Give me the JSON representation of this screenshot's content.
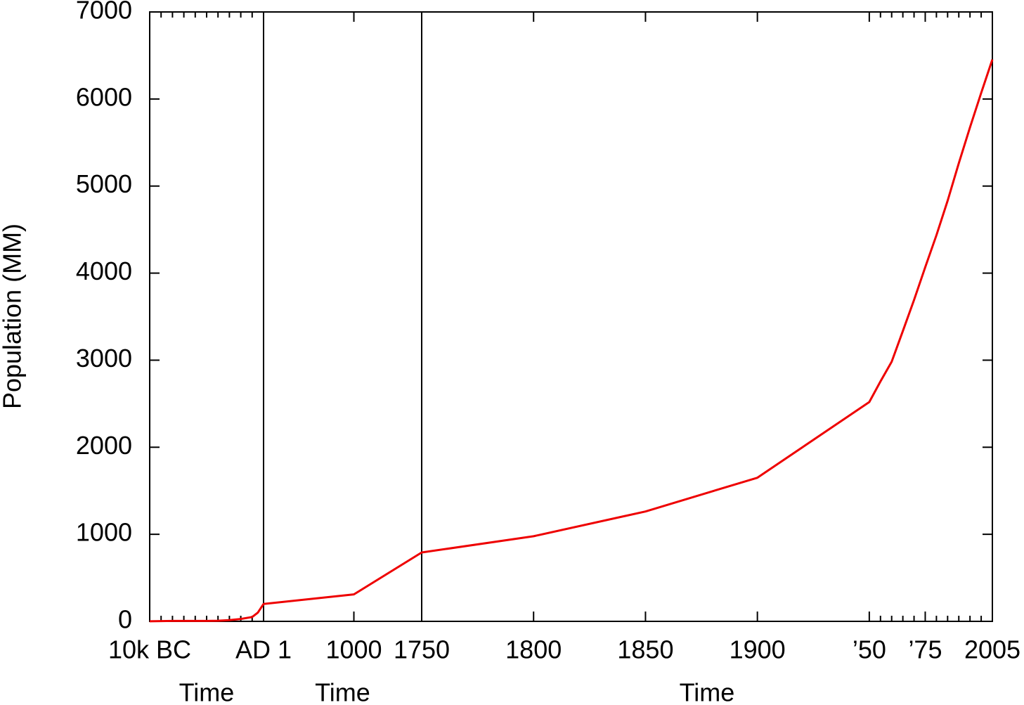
{
  "chart_data": {
    "type": "line",
    "y_label": "Population (MM)",
    "ylim": [
      0,
      7000
    ],
    "yticks": [
      0,
      1000,
      2000,
      3000,
      4000,
      5000,
      6000,
      7000
    ],
    "x_segments": [
      {
        "xlim": [
          -10000,
          1
        ],
        "x_label": "Time",
        "xticks": [
          {
            "value": -10000,
            "label": "10k BC"
          },
          {
            "value": 1,
            "label": "AD 1"
          }
        ],
        "minor_xticks": [
          -9000,
          -8000,
          -7000,
          -6000,
          -5000,
          -4000,
          -3000,
          -2000,
          -1000
        ]
      },
      {
        "xlim": [
          1,
          1750
        ],
        "x_label": "Time",
        "xticks": [
          1000
        ],
        "minor_xticks": []
      },
      {
        "xlim": [
          1750,
          2005
        ],
        "x_label": "Time",
        "xticks": [
          1750,
          1800,
          1850,
          1900,
          {
            "value": 1950,
            "label": "’50"
          },
          {
            "value": 1975,
            "label": "’75"
          },
          2005
        ],
        "minor_xticks": [
          1955,
          1960,
          1965,
          1970,
          1980,
          1985,
          1990,
          1995,
          2000
        ]
      }
    ],
    "series": [
      {
        "color": "#ee0000",
        "x": [
          -10000,
          -8000,
          -6500,
          -5000,
          -4000,
          -3000,
          -2000,
          -1000,
          -500,
          1,
          1000,
          1750,
          1800,
          1850,
          1900,
          1950,
          1955,
          1960,
          1965,
          1970,
          1975,
          1980,
          1985,
          1990,
          1995,
          2000,
          2005
        ],
        "values": [
          1,
          5,
          5,
          5,
          7,
          14,
          27,
          50,
          100,
          200,
          310,
          791,
          978,
          1262,
          1650,
          2519,
          2756,
          2982,
          3335,
          3692,
          4068,
          4435,
          4831,
          5263,
          5674,
          6070,
          6454
        ]
      }
    ]
  }
}
